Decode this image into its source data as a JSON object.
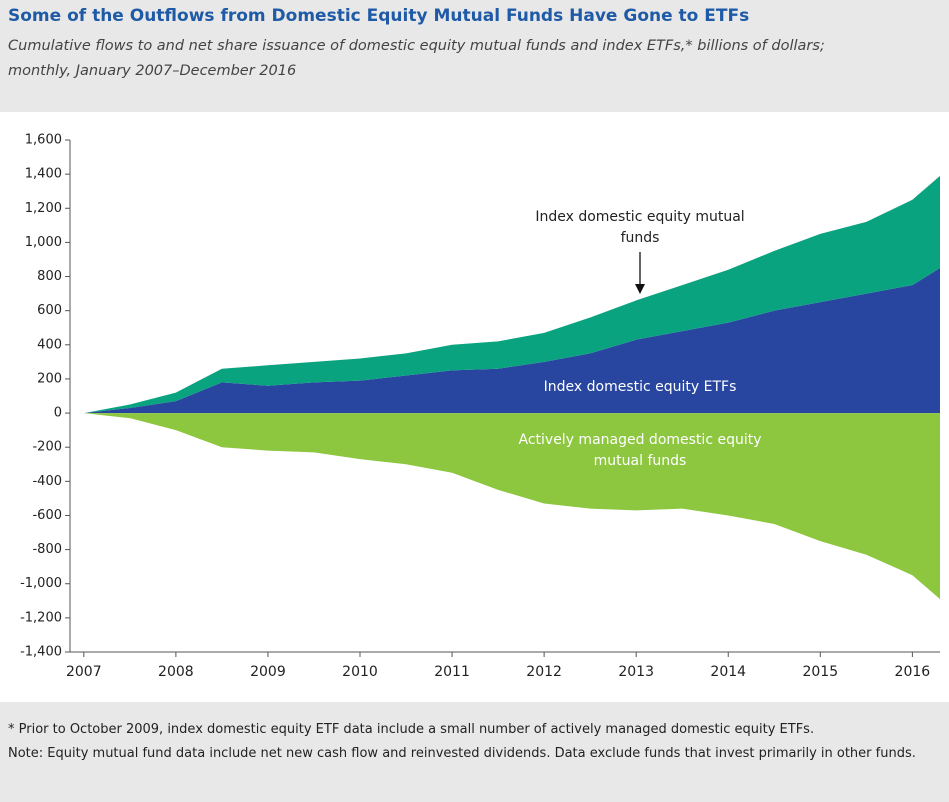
{
  "chart_data": {
    "type": "stacked_area",
    "title": "Some of the Outflows from Domestic Equity Mutual Funds Have Gone to ETFs",
    "subtitle": "Cumulative flows to and net share issuance of domestic equity mutual funds and index ETFs,* billions of dollars; monthly, January 2007–December 2016",
    "x": [
      2007,
      2007.5,
      2008,
      2008.5,
      2009,
      2009.5,
      2010,
      2010.5,
      2011,
      2011.5,
      2012,
      2012.5,
      2013,
      2013.5,
      2014,
      2014.5,
      2015,
      2015.5,
      2016,
      2016.3
    ],
    "series": [
      {
        "name": "Index domestic equity ETFs",
        "color": "#2846a0",
        "stack": "pos",
        "values": [
          0,
          30,
          70,
          180,
          160,
          180,
          190,
          220,
          250,
          260,
          300,
          350,
          430,
          480,
          530,
          600,
          650,
          700,
          750,
          850
        ]
      },
      {
        "name": "Index domestic equity mutual funds",
        "color": "#0aa37f",
        "stack": "pos",
        "values": [
          0,
          20,
          50,
          80,
          120,
          120,
          130,
          130,
          150,
          160,
          170,
          210,
          230,
          270,
          310,
          350,
          400,
          420,
          500,
          540
        ]
      },
      {
        "name": "Actively managed domestic equity mutual funds",
        "color": "#8dc63f",
        "stack": "neg",
        "values": [
          0,
          -30,
          -100,
          -200,
          -220,
          -230,
          -270,
          -300,
          -350,
          -450,
          -530,
          -560,
          -570,
          -560,
          -600,
          -650,
          -750,
          -830,
          -950,
          -1090
        ]
      }
    ],
    "xlim": [
      2006.85,
      2016.3
    ],
    "xticks": [
      2007,
      2008,
      2009,
      2010,
      2011,
      2012,
      2013,
      2014,
      2015,
      2016
    ],
    "ylim": [
      -1400,
      1600
    ],
    "yticks": [
      {
        "value": -1400,
        "label": "-1,400"
      },
      {
        "value": -1200,
        "label": "-1,200"
      },
      {
        "value": -1000,
        "label": "-1,000"
      },
      -800,
      -600,
      -400,
      -200,
      0,
      200,
      400,
      600,
      800,
      {
        "value": 1000,
        "label": "1,000"
      },
      {
        "value": 1200,
        "label": "1,200"
      },
      {
        "value": 1400,
        "label": "1,400"
      },
      {
        "value": 1600,
        "label": "1,600"
      }
    ],
    "footnotes": [
      "* Prior to October 2009, index domestic equity ETF data include a small number of actively managed domestic equity ETFs.",
      "Note: Equity mutual fund data include net new cash flow and reinvested dividends. Data exclude funds that invest primarily in other funds."
    ]
  }
}
